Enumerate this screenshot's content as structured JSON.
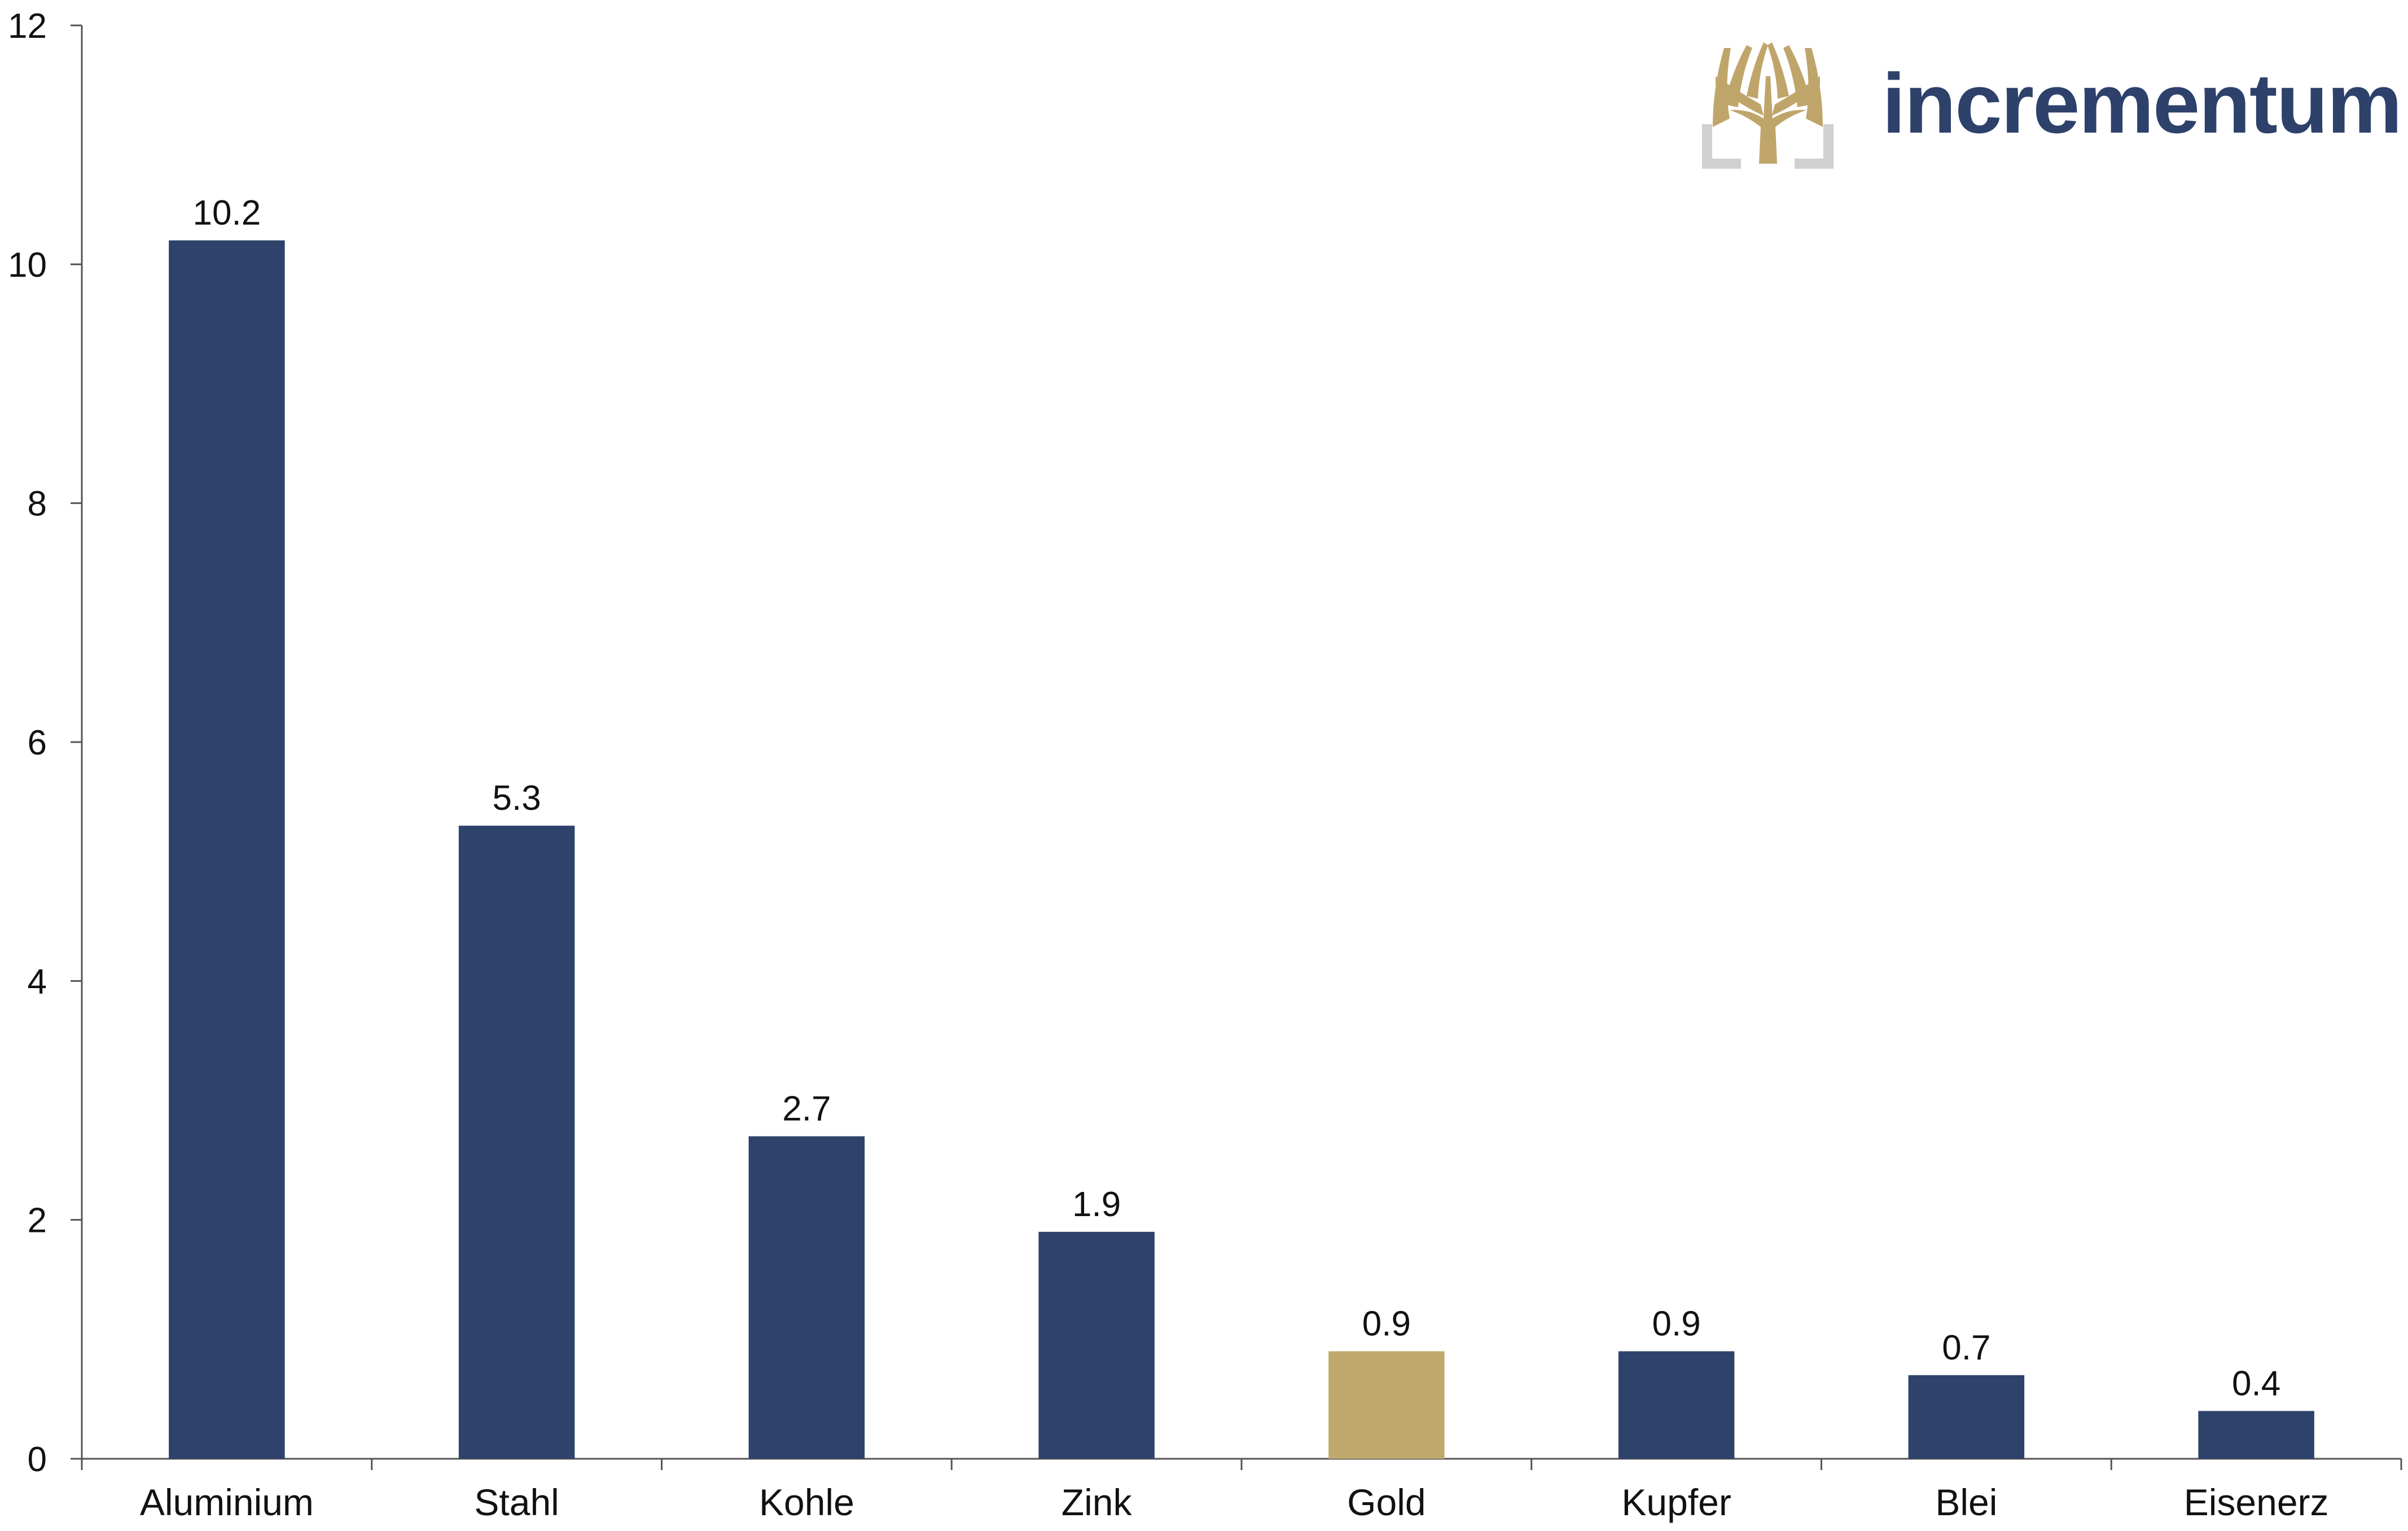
{
  "brand": {
    "name": "incrementum",
    "text_color": "#2d416b",
    "logo_color": "#c0a56a",
    "logo_frame_color": "#d0d0d0",
    "logo_icon": "tree-icon"
  },
  "chart_data": {
    "type": "bar",
    "title": "",
    "xlabel": "",
    "ylabel": "",
    "categories": [
      "Aluminium",
      "Stahl",
      "Kohle",
      "Zink",
      "Gold",
      "Kupfer",
      "Blei",
      "Eisenerz"
    ],
    "values": [
      10.2,
      5.3,
      2.7,
      1.9,
      0.9,
      0.9,
      0.7,
      0.4
    ],
    "data_labels": [
      "10.2",
      "5.3",
      "2.7",
      "1.9",
      "0.9",
      "0.9",
      "0.7",
      "0.4"
    ],
    "ylim": [
      0,
      12
    ],
    "yticks": [
      0,
      2,
      4,
      6,
      8,
      10,
      12
    ],
    "grid": false,
    "legend": "none",
    "colors": {
      "default": "#2e426b",
      "highlight": "#c1a96e",
      "highlight_category": "Gold",
      "axis": "#555555"
    }
  }
}
